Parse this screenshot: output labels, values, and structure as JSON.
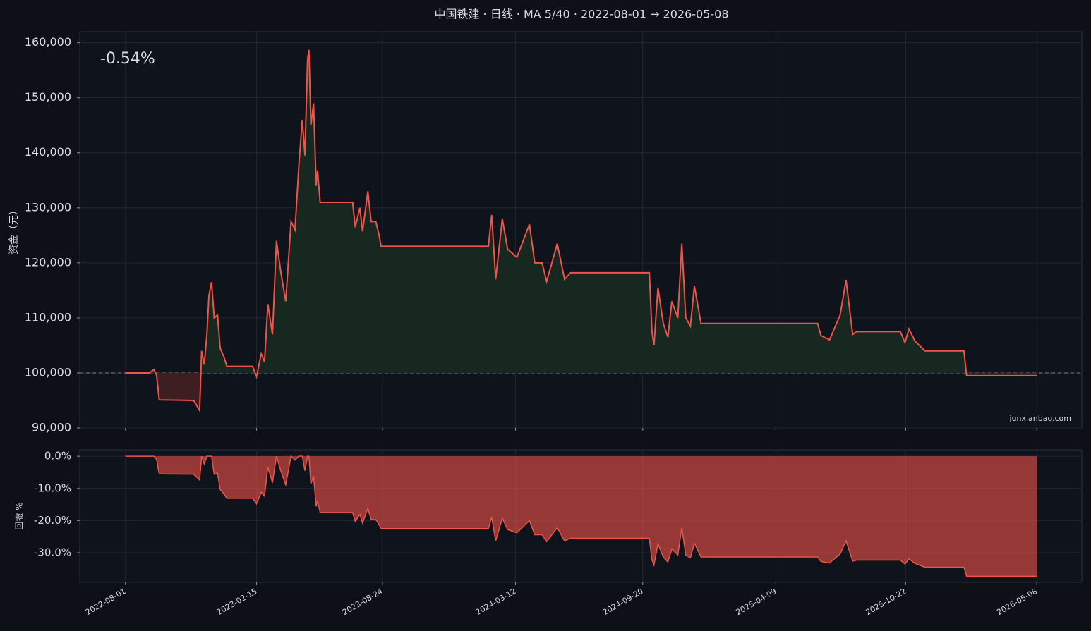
{
  "title": "中国铁建 · 日线 · MA 5/40 · 2022-08-01 → 2026-05-08",
  "watermark": "junxianbao.com",
  "chart_data": [
    {
      "type": "line",
      "ylabel": "资金（元）",
      "annotation": "-0.54%",
      "baseline": 100000,
      "x": [
        "2022-08-01",
        "2022-09-06",
        "2022-09-13",
        "2022-09-17",
        "2022-09-21",
        "2022-11-12",
        "2022-11-21",
        "2022-11-24",
        "2022-11-28",
        "2022-12-02",
        "2022-12-05",
        "2022-12-09",
        "2022-12-13",
        "2022-12-18",
        "2022-12-22",
        "2022-12-28",
        "2023-01-01",
        "2023-02-09",
        "2023-02-15",
        "2023-02-22",
        "2023-02-27",
        "2023-03-04",
        "2023-03-11",
        "2023-03-17",
        "2023-03-24",
        "2023-03-31",
        "2023-04-08",
        "2023-04-14",
        "2023-04-20",
        "2023-04-25",
        "2023-04-29",
        "2023-05-03",
        "2023-05-05",
        "2023-05-08",
        "2023-05-12",
        "2023-05-16",
        "2023-05-18",
        "2023-05-22",
        "2023-07-10",
        "2023-07-14",
        "2023-07-21",
        "2023-07-25",
        "2023-08-02",
        "2023-08-07",
        "2023-08-14",
        "2023-08-19",
        "2023-08-22",
        "2024-01-31",
        "2024-02-05",
        "2024-02-11",
        "2024-02-21",
        "2024-02-29",
        "2024-03-14",
        "2024-04-02",
        "2024-04-10",
        "2024-04-21",
        "2024-04-28",
        "2024-05-14",
        "2024-05-25",
        "2024-06-03",
        "2024-09-30",
        "2024-10-04",
        "2024-10-07",
        "2024-10-13",
        "2024-10-21",
        "2024-10-28",
        "2024-11-03",
        "2024-11-12",
        "2024-11-18",
        "2024-11-24",
        "2024-12-01",
        "2024-12-07",
        "2024-12-17",
        "2025-06-11",
        "2025-06-16",
        "2025-06-29",
        "2025-07-15",
        "2025-07-24",
        "2025-08-03",
        "2025-08-09",
        "2025-10-14",
        "2025-10-21",
        "2025-10-27",
        "2025-11-05",
        "2025-11-20",
        "2026-01-18",
        "2026-01-22",
        "2026-05-08"
      ],
      "series": [
        {
          "color": "#f0534a",
          "values": [
            100000,
            100000,
            100600,
            99600,
            95100,
            95000,
            93200,
            104000,
            101500,
            107000,
            114000,
            116500,
            110000,
            110500,
            104500,
            102800,
            101200,
            101200,
            99300,
            103500,
            102000,
            112500,
            107000,
            124000,
            118000,
            113000,
            127500,
            126000,
            138000,
            146000,
            139500,
            157000,
            158700,
            145000,
            149000,
            134000,
            136800,
            131000,
            131000,
            126500,
            130000,
            125700,
            133000,
            127500,
            127500,
            125000,
            123000,
            123000,
            128700,
            117000,
            128000,
            122500,
            121000,
            127000,
            120000,
            120000,
            116600,
            123500,
            117000,
            118200,
            118200,
            107500,
            105000,
            115500,
            109000,
            106500,
            113000,
            110000,
            123500,
            110000,
            108500,
            115800,
            109000,
            109000,
            106800,
            106000,
            110500,
            116900,
            107000,
            107500,
            107500,
            105500,
            108000,
            105800,
            104000,
            104000,
            99500,
            99500
          ]
        }
      ],
      "xlim": [
        "2022-05-24",
        "2026-07-15"
      ],
      "xticks": [
        "2022-08-01",
        "2023-02-15",
        "2023-08-24",
        "2024-03-12",
        "2024-09-20",
        "2025-04-09",
        "2025-10-22",
        "2026-05-08"
      ],
      "ylim": [
        90000,
        162000
      ],
      "yticks": [
        {
          "value": 90000,
          "label": "90,000"
        },
        {
          "value": 100000,
          "label": "100,000"
        },
        {
          "value": 110000,
          "label": "110,000"
        },
        {
          "value": 120000,
          "label": "120,000"
        },
        {
          "value": 130000,
          "label": "130,000"
        },
        {
          "value": 140000,
          "label": "140,000"
        },
        {
          "value": 150000,
          "label": "150,000"
        },
        {
          "value": 160000,
          "label": "160,000"
        }
      ],
      "grid": true
    },
    {
      "type": "area",
      "ylabel": "回撤 %",
      "x": [
        "2022-08-01",
        "2022-09-06",
        "2022-09-13",
        "2022-09-17",
        "2022-09-21",
        "2022-11-12",
        "2022-11-21",
        "2022-11-24",
        "2022-11-28",
        "2022-12-02",
        "2022-12-05",
        "2022-12-09",
        "2022-12-13",
        "2022-12-18",
        "2022-12-22",
        "2022-12-28",
        "2023-01-01",
        "2023-02-09",
        "2023-02-15",
        "2023-02-22",
        "2023-02-27",
        "2023-03-04",
        "2023-03-11",
        "2023-03-17",
        "2023-03-24",
        "2023-03-31",
        "2023-04-08",
        "2023-04-14",
        "2023-04-20",
        "2023-04-25",
        "2023-04-29",
        "2023-05-03",
        "2023-05-05",
        "2023-05-08",
        "2023-05-12",
        "2023-05-16",
        "2023-05-18",
        "2023-05-22",
        "2023-07-10",
        "2023-07-14",
        "2023-07-21",
        "2023-07-25",
        "2023-08-02",
        "2023-08-07",
        "2023-08-14",
        "2023-08-19",
        "2023-08-22",
        "2024-01-31",
        "2024-02-05",
        "2024-02-11",
        "2024-02-21",
        "2024-02-29",
        "2024-03-14",
        "2024-04-02",
        "2024-04-10",
        "2024-04-21",
        "2024-04-28",
        "2024-05-14",
        "2024-05-25",
        "2024-06-03",
        "2024-09-30",
        "2024-10-04",
        "2024-10-07",
        "2024-10-13",
        "2024-10-21",
        "2024-10-28",
        "2024-11-03",
        "2024-11-12",
        "2024-11-18",
        "2024-11-24",
        "2024-12-01",
        "2024-12-07",
        "2024-12-17",
        "2025-06-11",
        "2025-06-16",
        "2025-06-29",
        "2025-07-15",
        "2025-07-24",
        "2025-08-03",
        "2025-08-09",
        "2025-10-14",
        "2025-10-21",
        "2025-10-27",
        "2025-11-05",
        "2025-11-20",
        "2026-01-18",
        "2026-01-22",
        "2026-05-08"
      ],
      "series": [
        {
          "color": "#f0534a",
          "values": [
            0,
            0,
            0,
            -1.0,
            -5.5,
            -5.6,
            -7.4,
            0,
            -2.4,
            0,
            0,
            0,
            -5.6,
            -5.2,
            -10.3,
            -11.8,
            -13.1,
            -13.1,
            -14.8,
            -11.2,
            -12.4,
            -3.4,
            -8.2,
            0,
            -4.8,
            -8.9,
            0,
            -1.2,
            0,
            0,
            -4.5,
            0,
            0,
            -8.6,
            -6.1,
            -15.6,
            -13.8,
            -17.5,
            -17.5,
            -20.3,
            -18.1,
            -20.8,
            -16.2,
            -19.7,
            -19.7,
            -21.2,
            -22.5,
            -22.5,
            -18.9,
            -26.3,
            -19.3,
            -22.8,
            -23.8,
            -20.0,
            -24.4,
            -24.4,
            -26.5,
            -22.2,
            -26.3,
            -25.5,
            -25.5,
            -32.3,
            -33.8,
            -27.2,
            -31.3,
            -32.9,
            -28.8,
            -30.7,
            -22.2,
            -30.7,
            -31.6,
            -27.0,
            -31.3,
            -31.3,
            -32.7,
            -33.2,
            -30.4,
            -26.3,
            -32.6,
            -32.3,
            -32.3,
            -33.5,
            -31.9,
            -33.3,
            -34.5,
            -34.5,
            -37.3,
            -37.3
          ]
        }
      ],
      "xlim": [
        "2022-05-24",
        "2026-07-15"
      ],
      "xticks": [
        "2022-08-01",
        "2023-02-15",
        "2023-08-24",
        "2024-03-12",
        "2024-09-20",
        "2025-04-09",
        "2025-10-22",
        "2026-05-08"
      ],
      "ylim": [
        -39.2,
        2
      ],
      "yticks": [
        {
          "value": 0,
          "label": "0.0%"
        },
        {
          "value": -10,
          "label": "-10.0%"
        },
        {
          "value": -20,
          "label": "-20.0%"
        },
        {
          "value": -30,
          "label": "-30.0%"
        }
      ],
      "grid": true
    }
  ]
}
